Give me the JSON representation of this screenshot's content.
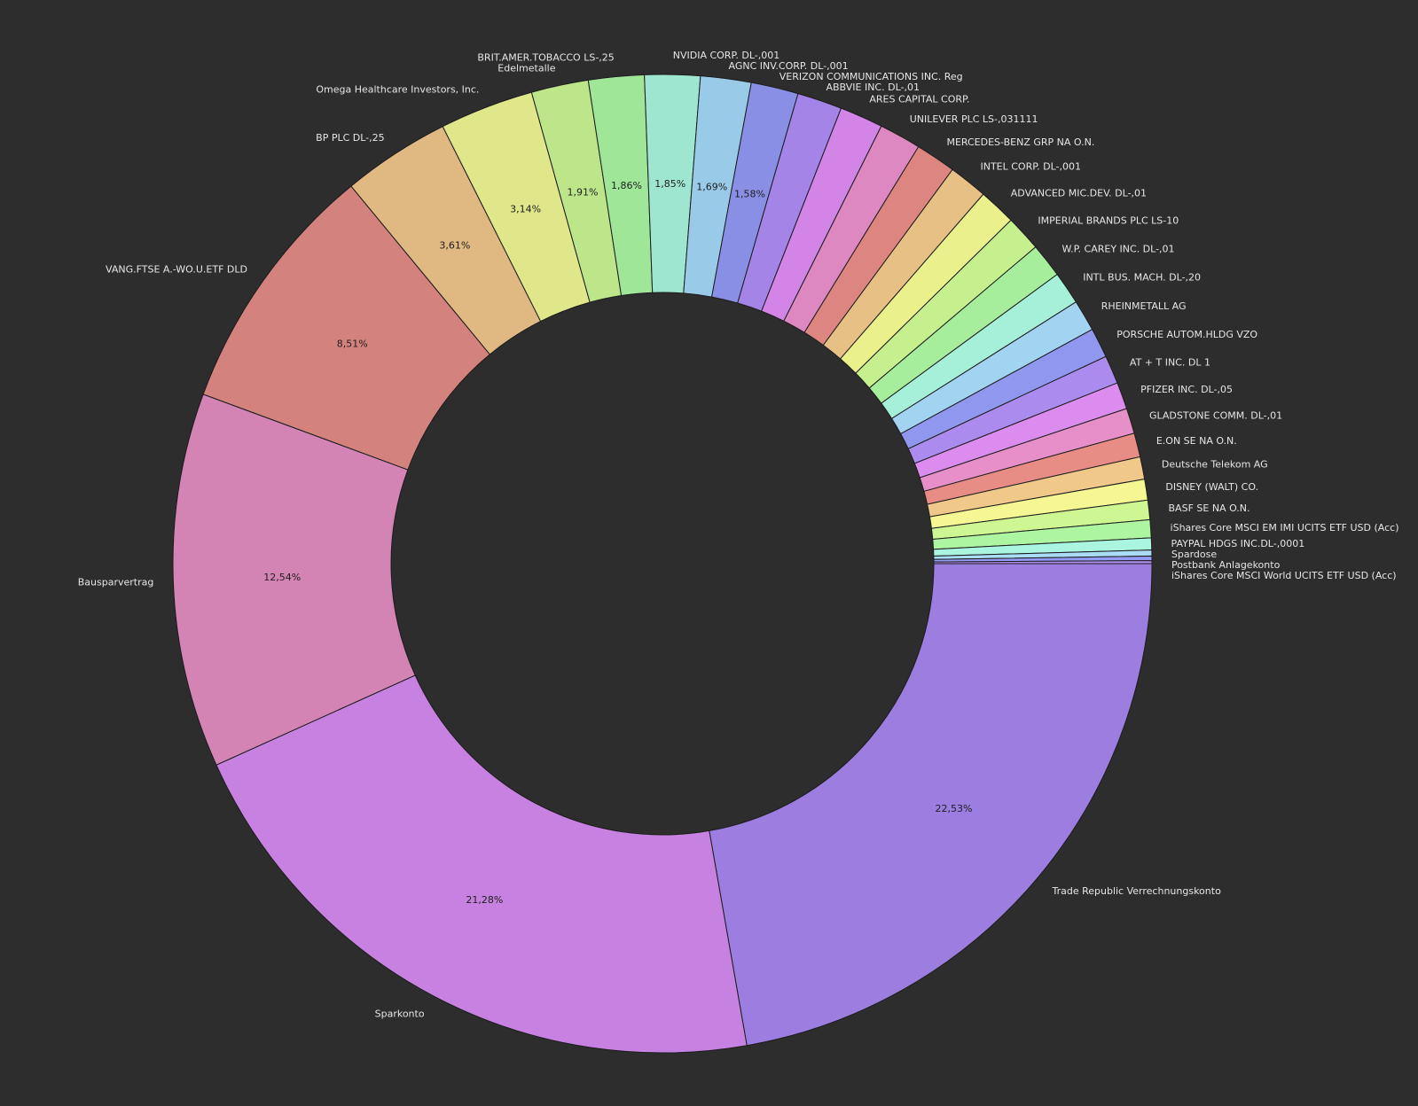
{
  "chart_data": {
    "type": "pie",
    "donut": true,
    "background_color": "#2d2d2d",
    "slices": [
      {
        "label": "Trade Republic Verrechnungskonto",
        "value": 22.53,
        "pct_label": "22,53%",
        "color": "#9b7ee0"
      },
      {
        "label": "Sparkonto",
        "value": 21.28,
        "pct_label": "21,28%",
        "color": "#c781e0"
      },
      {
        "label": "Bausparvertrag",
        "value": 12.54,
        "pct_label": "12,54%",
        "color": "#d383b4"
      },
      {
        "label": "VANG.FTSE A.-WO.U.ETF DLD",
        "value": 8.51,
        "pct_label": "8,51%",
        "color": "#d4827e"
      },
      {
        "label": "BP PLC DL-,25",
        "value": 3.61,
        "pct_label": "3,61%",
        "color": "#dfb882"
      },
      {
        "label": "Omega Healthcare Investors, Inc.",
        "value": 3.14,
        "pct_label": "3,14%",
        "color": "#e0e68a"
      },
      {
        "label": "Edelmetalle",
        "value": 1.91,
        "pct_label": "1,91%",
        "color": "#bde68a"
      },
      {
        "label": "BRIT.AMER.TOBACCO LS-,25",
        "value": 1.86,
        "pct_label": "1,86%",
        "color": "#9fe699"
      },
      {
        "label": "NVIDIA CORP. DL-,001",
        "value": 1.85,
        "pct_label": "1,85%",
        "color": "#9fe6d1"
      },
      {
        "label": "AGNC INV.CORP. DL-,001",
        "value": 1.69,
        "pct_label": "1,69%",
        "color": "#99cbe8"
      },
      {
        "label": "VERIZON COMMUNICATIONS INC. Reg",
        "value": 1.58,
        "pct_label": "1,58%",
        "color": "#8a8fe6"
      },
      {
        "label": "ABBVIE INC. DL-,01",
        "value": 1.5,
        "pct_label": "",
        "color": "#a484e6"
      },
      {
        "label": "ARES CAPITAL CORP.",
        "value": 1.45,
        "pct_label": "",
        "color": "#d285e6"
      },
      {
        "label": "UNILEVER PLC LS-,031111",
        "value": 1.4,
        "pct_label": "",
        "color": "#dd88c0"
      },
      {
        "label": "MERCEDES-BENZ GRP NA O.N.",
        "value": 1.35,
        "pct_label": "",
        "color": "#dd8580"
      },
      {
        "label": "INTEL CORP. DL-,001",
        "value": 1.3,
        "pct_label": "",
        "color": "#e6c084"
      },
      {
        "label": "ADVANCED MIC.DEV. DL-,01",
        "value": 1.25,
        "pct_label": "",
        "color": "#eaf08c"
      },
      {
        "label": "IMPERIAL BRANDS PLC LS-10",
        "value": 1.2,
        "pct_label": "",
        "color": "#c6f08e"
      },
      {
        "label": "W.P. CAREY INC. DL-,01",
        "value": 1.15,
        "pct_label": "",
        "color": "#a6ee9c"
      },
      {
        "label": "INTL BUS. MACH. DL-,20",
        "value": 1.1,
        "pct_label": "",
        "color": "#a6f0da"
      },
      {
        "label": "RHEINMETALL AG",
        "value": 1.05,
        "pct_label": "",
        "color": "#a2d4f2"
      },
      {
        "label": "PORSCHE AUTOM.HLDG VZO",
        "value": 1.0,
        "pct_label": "",
        "color": "#8f97ee"
      },
      {
        "label": "AT + T INC. DL 1",
        "value": 0.95,
        "pct_label": "",
        "color": "#ab8cee"
      },
      {
        "label": "PFIZER INC. DL-,05",
        "value": 0.9,
        "pct_label": "",
        "color": "#dc8cee"
      },
      {
        "label": "GLADSTONE COMM. DL-,01",
        "value": 0.85,
        "pct_label": "",
        "color": "#e68fc8"
      },
      {
        "label": "E.ON SE NA O.N.",
        "value": 0.8,
        "pct_label": "",
        "color": "#e88c86"
      },
      {
        "label": "Deutsche Telekom AG",
        "value": 0.75,
        "pct_label": "",
        "color": "#f0c88a"
      },
      {
        "label": "DISNEY (WALT) CO.",
        "value": 0.7,
        "pct_label": "",
        "color": "#f4f792"
      },
      {
        "label": "BASF SE NA O.N.",
        "value": 0.65,
        "pct_label": "",
        "color": "#cef794"
      },
      {
        "label": "iShares Core MSCI EM IMI UCITS ETF USD (Acc)",
        "value": 0.6,
        "pct_label": "",
        "color": "#aef5a2"
      },
      {
        "label": "PAYPAL HDGS INC.DL-,0001",
        "value": 0.4,
        "pct_label": "",
        "color": "#aaf5e0"
      },
      {
        "label": "Spardose",
        "value": 0.2,
        "pct_label": "",
        "color": "#a8dcf7"
      },
      {
        "label": "Postbank Anlagekonto",
        "value": 0.15,
        "pct_label": "",
        "color": "#949cf5"
      },
      {
        "label": "iShares Core MSCI World UCITS ETF USD (Acc)",
        "value": 0.1,
        "pct_label": "",
        "color": "#b090f5"
      }
    ]
  }
}
